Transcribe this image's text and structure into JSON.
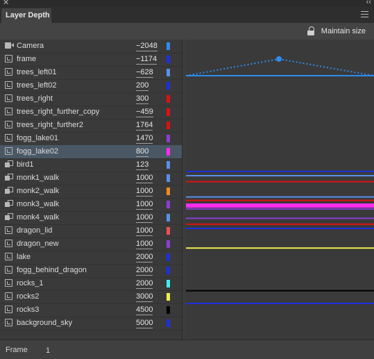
{
  "panel": {
    "title": "Layer Depth",
    "close_glyph": "✕",
    "collapse_glyph": "‹‹",
    "maintain_size_label": "Maintain size"
  },
  "layers": [
    {
      "name": "Camera",
      "depth": "−2048",
      "color": "#2d8cf0",
      "icon": "camera-icon",
      "line_color": "#2d8cf0",
      "line_width": 2
    },
    {
      "name": "frame",
      "depth": "−1174",
      "color": "#1e2fe0",
      "icon": "layer-icon"
    },
    {
      "name": "trees_left01",
      "depth": "−628",
      "color": "#5b8fe8",
      "icon": "layer-icon"
    },
    {
      "name": "trees_left02",
      "depth": "200",
      "color": "#1e2fe0",
      "icon": "layer-icon",
      "line_color": "#1e2fe0",
      "line_width": 2
    },
    {
      "name": "trees_right",
      "depth": "300",
      "color": "#e01010",
      "icon": "layer-icon"
    },
    {
      "name": "trees_right_further_copy",
      "depth": "−459",
      "color": "#e01010",
      "icon": "layer-icon"
    },
    {
      "name": "trees_right_further2",
      "depth": "1764",
      "color": "#e01010",
      "icon": "layer-icon"
    },
    {
      "name": "fogg_lake01",
      "depth": "1470",
      "color": "#8b3fd6",
      "icon": "layer-icon"
    },
    {
      "name": "fogg_lake02",
      "depth": "800",
      "color": "#ff2df0",
      "icon": "layer-icon",
      "selected": true
    },
    {
      "name": "bird1",
      "depth": "123",
      "color": "#5b8fe8",
      "icon": "motion-icon"
    },
    {
      "name": "monk1_walk",
      "depth": "1000",
      "color": "#5b8fe8",
      "icon": "motion-icon"
    },
    {
      "name": "monk2_walk",
      "depth": "1000",
      "color": "#f08a24",
      "icon": "motion-icon"
    },
    {
      "name": "monk3_walk",
      "depth": "1000",
      "color": "#8b3fd6",
      "icon": "motion-icon"
    },
    {
      "name": "monk4_walk",
      "depth": "1000",
      "color": "#5b8fe8",
      "icon": "motion-icon"
    },
    {
      "name": "dragon_lid",
      "depth": "1000",
      "color": "#f05050",
      "icon": "layer-icon"
    },
    {
      "name": "dragon_new",
      "depth": "1000",
      "color": "#8b3fd6",
      "icon": "layer-icon"
    },
    {
      "name": "lake",
      "depth": "2000",
      "color": "#1e2fe0",
      "icon": "layer-icon"
    },
    {
      "name": "fogg_behind_dragon",
      "depth": "2000",
      "color": "#1e2fe0",
      "icon": "layer-icon"
    },
    {
      "name": "rocks_1",
      "depth": "2000",
      "color": "#3ef0f0",
      "icon": "layer-icon"
    },
    {
      "name": "rocks2",
      "depth": "3000",
      "color": "#f0f04a",
      "icon": "layer-icon"
    },
    {
      "name": "rocks3",
      "depth": "4500",
      "color": "#000000",
      "icon": "layer-icon"
    },
    {
      "name": "background_sky",
      "depth": "5000",
      "color": "#1e2fe0",
      "icon": "layer-icon"
    }
  ],
  "graph_lines": [
    {
      "depth": -2048,
      "color": "#2d8cf0",
      "width": 2
    },
    {
      "depth": 200,
      "color": "#1e2fe0",
      "width": 2
    },
    {
      "depth": 300,
      "color": "#5b8fe8",
      "width": 2
    },
    {
      "depth": 440,
      "color": "#e01010",
      "width": 2
    },
    {
      "depth": 800,
      "color": "#5b8fe8",
      "width": 2
    },
    {
      "depth": 880,
      "color": "#e01010",
      "width": 2
    },
    {
      "depth": 1000,
      "color": "#ff2df0",
      "width": 6
    },
    {
      "depth": 1080,
      "color": "#8b3fd6",
      "width": 2
    },
    {
      "depth": 1300,
      "color": "#8b3fd6",
      "width": 2
    },
    {
      "depth": 1440,
      "color": "#e01010",
      "width": 2
    },
    {
      "depth": 1540,
      "color": "#1e2fe0",
      "width": 2
    },
    {
      "depth": 2000,
      "color": "#f0f04a",
      "width": 2
    },
    {
      "depth": 3000,
      "color": "#000000",
      "width": 2
    },
    {
      "depth": 3300,
      "color": "#1e2fe0",
      "width": 2
    }
  ],
  "footer": {
    "label": "Frame",
    "value": "1"
  }
}
